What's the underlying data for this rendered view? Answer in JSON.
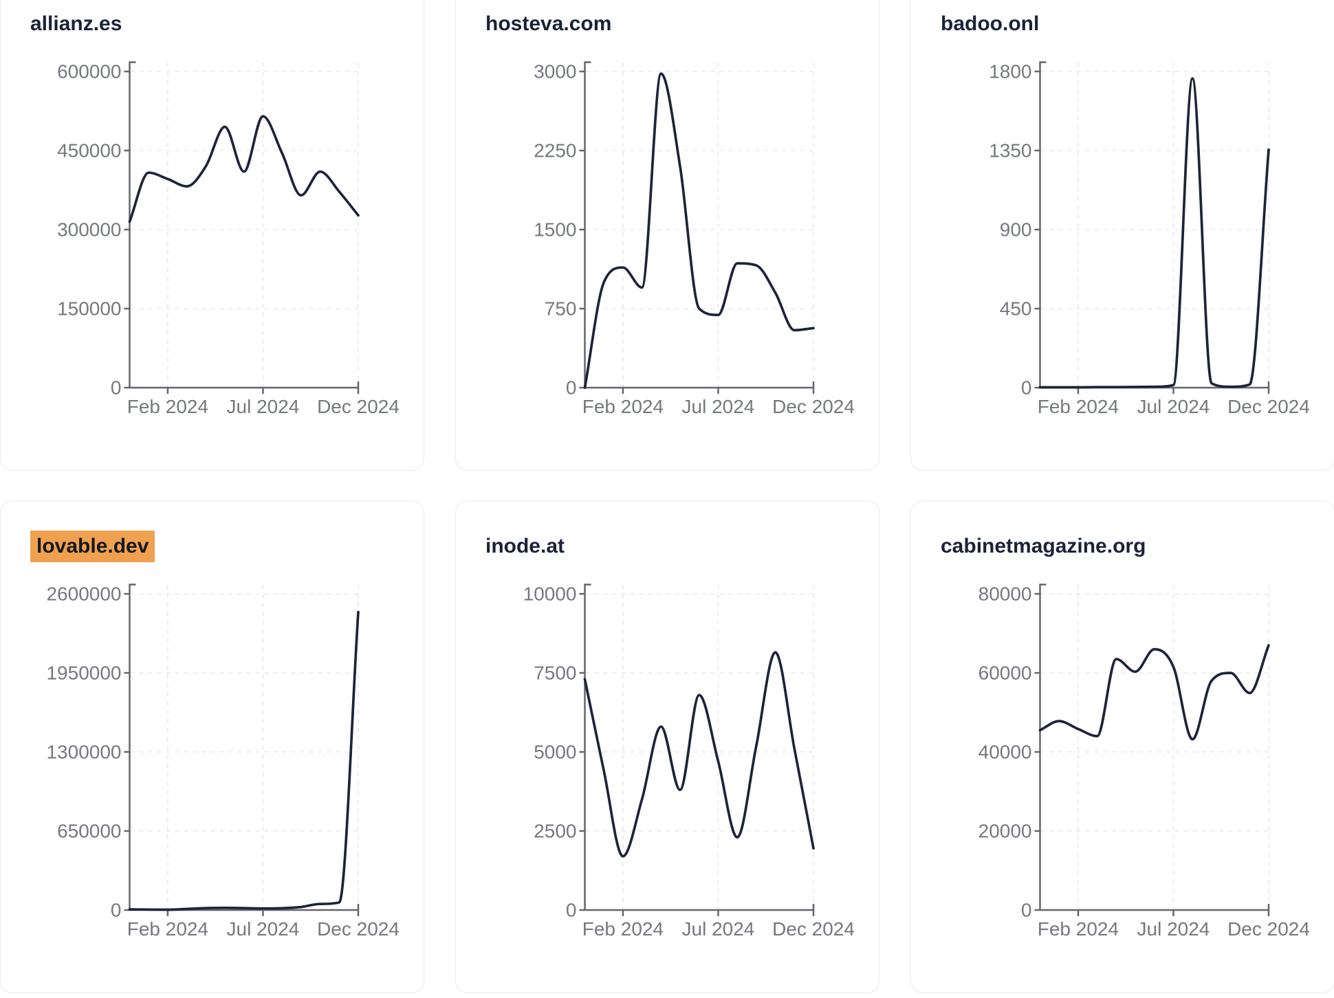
{
  "x_axis": {
    "tick_labels": [
      "Feb 2024",
      "Jul 2024",
      "Dec 2024"
    ],
    "tick_month_indices": [
      2,
      7,
      12
    ],
    "months": [
      "Dec 2023",
      "Jan 2024",
      "Feb 2024",
      "Mar 2024",
      "Apr 2024",
      "May 2024",
      "Jun 2024",
      "Jul 2024",
      "Aug 2024",
      "Sep 2024",
      "Oct 2024",
      "Nov 2024",
      "Dec 2024"
    ]
  },
  "styles": {
    "line_color": "#1e2438",
    "axis_color": "#63666c",
    "tick_label_color": "#75787e",
    "grid_color": "#e8e8ec",
    "card_border_color": "#e7e9f1",
    "title_color": "#1a2238",
    "highlight_bg": "#f0a14f",
    "highlight_text": "#14181f"
  },
  "chart_data": [
    {
      "type": "line",
      "title": "allianz.es",
      "highlighted": false,
      "ylim": [
        0,
        600000
      ],
      "y_ticks": [
        0,
        150000,
        300000,
        450000,
        600000
      ],
      "x_tick_labels": [
        "Feb 2024",
        "Jul 2024",
        "Dec 2024"
      ],
      "values": [
        315000,
        408000,
        396000,
        382000,
        420000,
        495000,
        410000,
        515000,
        445000,
        365000,
        410000,
        372000,
        327000
      ]
    },
    {
      "type": "line",
      "title": "hosteva.com",
      "highlighted": false,
      "ylim": [
        0,
        3000
      ],
      "y_ticks": [
        0,
        750,
        1500,
        2250,
        3000
      ],
      "x_tick_labels": [
        "Feb 2024",
        "Jul 2024",
        "Dec 2024"
      ],
      "values": [
        0,
        1000,
        1140,
        950,
        2980,
        2100,
        750,
        690,
        1180,
        1160,
        900,
        545,
        565
      ]
    },
    {
      "type": "line",
      "title": "badoo.onl",
      "highlighted": false,
      "ylim": [
        0,
        1800
      ],
      "y_ticks": [
        0,
        450,
        900,
        1350,
        1800
      ],
      "x_tick_labels": [
        "Feb 2024",
        "Jul 2024",
        "Dec 2024"
      ],
      "values": [
        2,
        2,
        2,
        3,
        3,
        4,
        5,
        15,
        1760,
        25,
        5,
        18,
        1355
      ]
    },
    {
      "type": "line",
      "title": "lovable.dev",
      "highlighted": true,
      "ylim": [
        0,
        2600000
      ],
      "y_ticks": [
        0,
        650000,
        1300000,
        1950000,
        2600000
      ],
      "x_tick_labels": [
        "Feb 2024",
        "Jul 2024",
        "Dec 2024"
      ],
      "values": [
        5000,
        4000,
        3000,
        9000,
        16000,
        18000,
        16000,
        13000,
        15000,
        25000,
        50000,
        62000,
        2450000
      ]
    },
    {
      "type": "line",
      "title": "inode.at",
      "highlighted": false,
      "ylim": [
        0,
        10000
      ],
      "y_ticks": [
        0,
        2500,
        5000,
        7500,
        10000
      ],
      "x_tick_labels": [
        "Feb 2024",
        "Jul 2024",
        "Dec 2024"
      ],
      "values": [
        7300,
        4400,
        1700,
        3500,
        5800,
        3800,
        6800,
        4700,
        2300,
        5200,
        8150,
        5100,
        1950
      ]
    },
    {
      "type": "line",
      "title": "cabinetmagazine.org",
      "highlighted": false,
      "ylim": [
        0,
        80000
      ],
      "y_ticks": [
        0,
        20000,
        40000,
        60000,
        80000
      ],
      "x_tick_labels": [
        "Feb 2024",
        "Jul 2024",
        "Dec 2024"
      ],
      "values": [
        45500,
        47800,
        45800,
        44000,
        63500,
        60300,
        66000,
        61500,
        43200,
        58000,
        60000,
        54900,
        67000
      ]
    }
  ]
}
